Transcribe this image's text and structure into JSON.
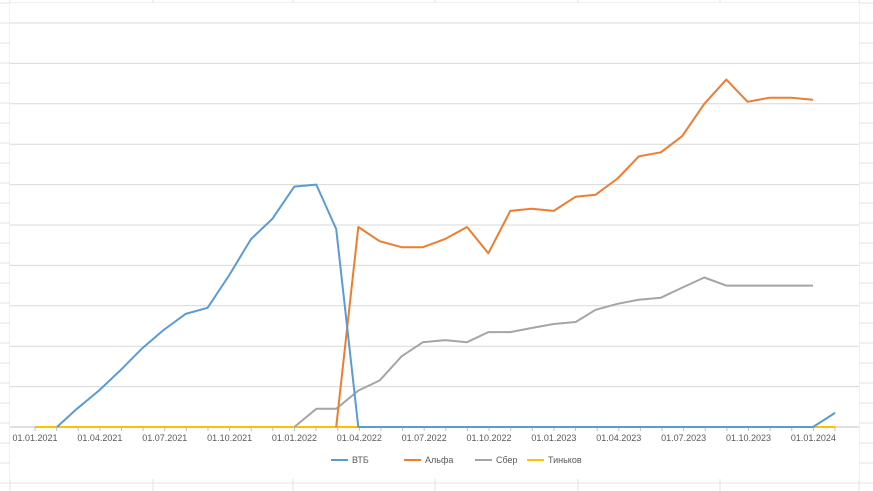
{
  "chart_data": {
    "type": "line",
    "title": "",
    "xlabel": "",
    "ylabel": "",
    "x_tick_labels": [
      "01.01.2021",
      "01.04.2021",
      "01.07.2021",
      "01.10.2021",
      "01.01.2022",
      "01.04.2022",
      "01.07.2022",
      "01.10.2022",
      "01.01.2023",
      "01.04.2023",
      "01.07.2023",
      "01.10.2023",
      "01.01.2024"
    ],
    "ylim": [
      0,
      100
    ],
    "y_tick_labels_visible": false,
    "grid": "horizontal",
    "legend_position": "bottom",
    "series": [
      {
        "name": "ВТБ",
        "color": "#5b9bd5",
        "points": [
          [
            "2021-01-31",
            0
          ],
          [
            "2021-02-28",
            4.5
          ],
          [
            "2021-03-31",
            9
          ],
          [
            "2021-04-30",
            14
          ],
          [
            "2021-05-31",
            19.5
          ],
          [
            "2021-06-30",
            24
          ],
          [
            "2021-07-31",
            28
          ],
          [
            "2021-08-31",
            29.5
          ],
          [
            "2021-09-30",
            37.5
          ],
          [
            "2021-10-31",
            46.5
          ],
          [
            "2021-11-30",
            51.5
          ],
          [
            "2021-12-31",
            59.5
          ],
          [
            "2022-01-31",
            60
          ],
          [
            "2022-02-28",
            49
          ],
          [
            "2022-03-31",
            0
          ],
          [
            "2023-12-31",
            0
          ],
          [
            "2024-01-31",
            3.5
          ]
        ]
      },
      {
        "name": "Альфа",
        "color": "#ed7d31",
        "points": [
          [
            "2022-02-28",
            0
          ],
          [
            "2022-03-31",
            49.5
          ],
          [
            "2022-04-30",
            46
          ],
          [
            "2022-05-31",
            44.5
          ],
          [
            "2022-06-30",
            44.5
          ],
          [
            "2022-07-31",
            46.5
          ],
          [
            "2022-08-31",
            49.5
          ],
          [
            "2022-09-30",
            43
          ],
          [
            "2022-10-31",
            53.5
          ],
          [
            "2022-11-30",
            54
          ],
          [
            "2022-12-31",
            53.5
          ],
          [
            "2023-01-31",
            57
          ],
          [
            "2023-02-28",
            57.5
          ],
          [
            "2023-03-31",
            61.5
          ],
          [
            "2023-04-30",
            67
          ],
          [
            "2023-05-31",
            68
          ],
          [
            "2023-06-30",
            72
          ],
          [
            "2023-07-31",
            80
          ],
          [
            "2023-08-31",
            86
          ],
          [
            "2023-09-30",
            80.5
          ],
          [
            "2023-10-31",
            81.5
          ],
          [
            "2023-11-30",
            81.5
          ],
          [
            "2023-12-31",
            81
          ]
        ]
      },
      {
        "name": "Сбер",
        "color": "#a5a5a5",
        "points": [
          [
            "2021-12-31",
            0
          ],
          [
            "2022-01-31",
            4.5
          ],
          [
            "2022-02-28",
            4.5
          ],
          [
            "2022-03-31",
            9
          ],
          [
            "2022-04-30",
            11.5
          ],
          [
            "2022-05-31",
            17.5
          ],
          [
            "2022-06-30",
            21
          ],
          [
            "2022-07-31",
            21.5
          ],
          [
            "2022-08-31",
            21
          ],
          [
            "2022-09-30",
            23.5
          ],
          [
            "2022-10-31",
            23.5
          ],
          [
            "2022-11-30",
            24.5
          ],
          [
            "2022-12-31",
            25.5
          ],
          [
            "2023-01-31",
            26
          ],
          [
            "2023-02-28",
            29
          ],
          [
            "2023-03-31",
            30.5
          ],
          [
            "2023-04-30",
            31.5
          ],
          [
            "2023-05-31",
            32
          ],
          [
            "2023-06-30",
            34.5
          ],
          [
            "2023-07-31",
            37
          ],
          [
            "2023-08-31",
            35
          ],
          [
            "2023-09-30",
            35
          ],
          [
            "2023-10-31",
            35
          ],
          [
            "2023-11-30",
            35
          ],
          [
            "2023-12-31",
            35
          ]
        ]
      },
      {
        "name": "Тиньков",
        "color": "#ffc000",
        "points": [
          [
            "2020-12-31",
            0
          ],
          [
            "2024-01-31",
            0
          ]
        ]
      }
    ]
  }
}
